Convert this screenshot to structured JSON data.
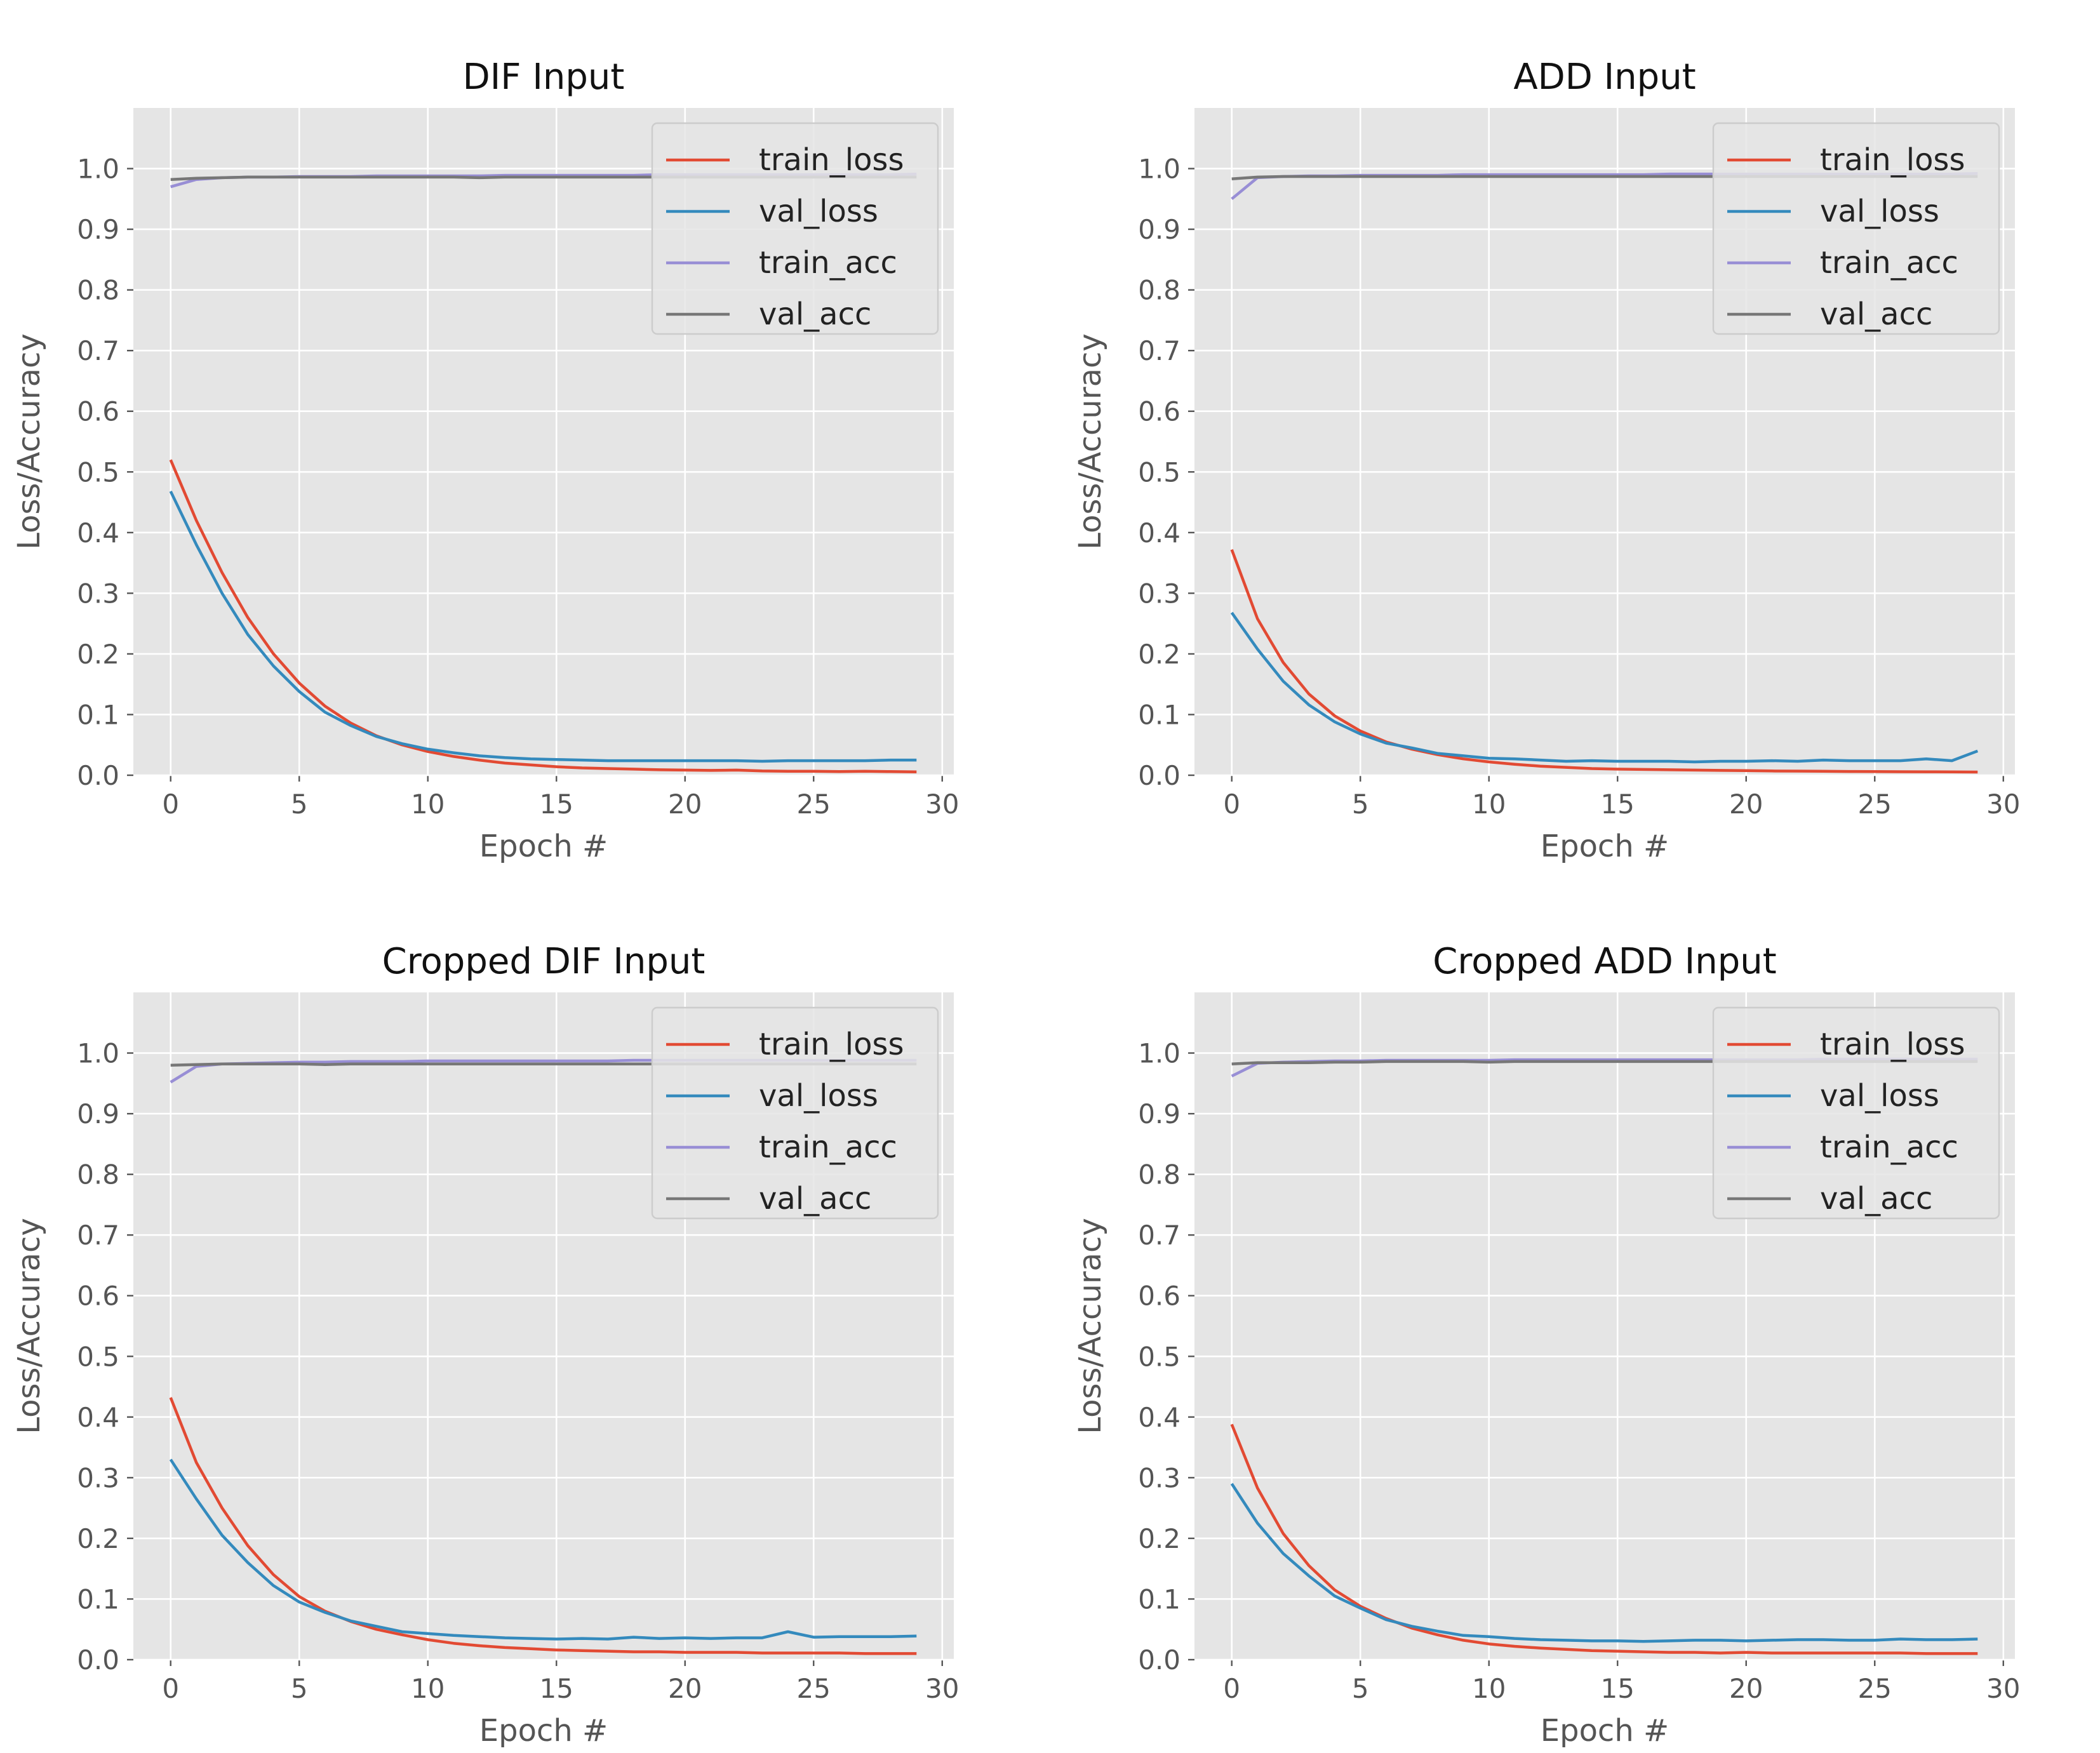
{
  "figure": {
    "xlabel": "Epoch #",
    "ylabel": "Loss/Accuracy",
    "xticks": [
      0,
      5,
      10,
      15,
      20,
      25,
      30
    ],
    "yticks": [
      0.0,
      0.1,
      0.2,
      0.3,
      0.4,
      0.5,
      0.6,
      0.7,
      0.8,
      0.9,
      1.0
    ],
    "xlim": [
      -1.45,
      30.45
    ],
    "ylim": [
      0.0,
      1.1
    ],
    "colors": {
      "train_loss": "#E24A33",
      "val_loss": "#348ABD",
      "train_acc": "#988ED5",
      "val_acc": "#777777",
      "axes_bg": "#E5E5E5",
      "grid": "#FFFFFF",
      "tick_text": "#555555"
    }
  },
  "chart_data": [
    {
      "type": "line",
      "title": "DIF Input",
      "xlabel": "Epoch #",
      "ylabel": "Loss/Accuracy",
      "xlim": [
        -1.45,
        30.45
      ],
      "ylim": [
        0.0,
        1.1
      ],
      "legend": "top-right",
      "grid": true,
      "x": [
        0,
        1,
        2,
        3,
        4,
        5,
        6,
        7,
        8,
        9,
        10,
        11,
        12,
        13,
        14,
        15,
        16,
        17,
        18,
        19,
        20,
        21,
        22,
        23,
        24,
        25,
        26,
        27,
        28,
        29
      ],
      "series": [
        {
          "name": "train_loss",
          "values": [
            0.52,
            0.42,
            0.334,
            0.26,
            0.2,
            0.152,
            0.114,
            0.086,
            0.065,
            0.05,
            0.039,
            0.031,
            0.025,
            0.02,
            0.017,
            0.014,
            0.012,
            0.011,
            0.01,
            0.009,
            0.0085,
            0.008,
            0.0085,
            0.007,
            0.0065,
            0.0065,
            0.006,
            0.0065,
            0.006,
            0.0055
          ]
        },
        {
          "name": "val_loss",
          "values": [
            0.468,
            0.38,
            0.3,
            0.232,
            0.18,
            0.138,
            0.104,
            0.082,
            0.064,
            0.052,
            0.043,
            0.037,
            0.032,
            0.029,
            0.027,
            0.026,
            0.025,
            0.024,
            0.024,
            0.024,
            0.024,
            0.024,
            0.024,
            0.023,
            0.024,
            0.024,
            0.024,
            0.024,
            0.025,
            0.025
          ]
        },
        {
          "name": "train_acc",
          "values": [
            0.97,
            0.982,
            0.985,
            0.986,
            0.986,
            0.987,
            0.987,
            0.987,
            0.988,
            0.988,
            0.988,
            0.988,
            0.988,
            0.989,
            0.989,
            0.989,
            0.989,
            0.989,
            0.989,
            0.99,
            0.99,
            0.99,
            0.99,
            0.99,
            0.99,
            0.99,
            0.99,
            0.99,
            0.99,
            0.991
          ]
        },
        {
          "name": "val_acc",
          "values": [
            0.982,
            0.984,
            0.985,
            0.986,
            0.986,
            0.986,
            0.986,
            0.986,
            0.986,
            0.986,
            0.986,
            0.986,
            0.985,
            0.986,
            0.986,
            0.986,
            0.986,
            0.986,
            0.986,
            0.986,
            0.986,
            0.986,
            0.986,
            0.986,
            0.986,
            0.986,
            0.986,
            0.986,
            0.986,
            0.986
          ]
        }
      ]
    },
    {
      "type": "line",
      "title": "ADD Input",
      "xlabel": "Epoch #",
      "ylabel": "Loss/Accuracy",
      "xlim": [
        -1.45,
        30.45
      ],
      "ylim": [
        0.0,
        1.1
      ],
      "legend": "top-right",
      "grid": true,
      "x": [
        0,
        1,
        2,
        3,
        4,
        5,
        6,
        7,
        8,
        9,
        10,
        11,
        12,
        13,
        14,
        15,
        16,
        17,
        18,
        19,
        20,
        21,
        22,
        23,
        24,
        25,
        26,
        27,
        28,
        29
      ],
      "series": [
        {
          "name": "train_loss",
          "values": [
            0.372,
            0.258,
            0.186,
            0.134,
            0.098,
            0.073,
            0.055,
            0.043,
            0.034,
            0.027,
            0.022,
            0.018,
            0.015,
            0.013,
            0.011,
            0.01,
            0.0095,
            0.009,
            0.0085,
            0.008,
            0.0075,
            0.007,
            0.0068,
            0.0065,
            0.0062,
            0.006,
            0.0058,
            0.0056,
            0.0054,
            0.0052
          ]
        },
        {
          "name": "val_loss",
          "values": [
            0.268,
            0.208,
            0.155,
            0.116,
            0.088,
            0.068,
            0.053,
            0.045,
            0.036,
            0.032,
            0.028,
            0.027,
            0.025,
            0.023,
            0.024,
            0.023,
            0.023,
            0.023,
            0.022,
            0.023,
            0.023,
            0.024,
            0.023,
            0.025,
            0.024,
            0.024,
            0.024,
            0.027,
            0.024,
            0.04
          ]
        },
        {
          "name": "train_acc",
          "values": [
            0.95,
            0.985,
            0.987,
            0.988,
            0.988,
            0.989,
            0.989,
            0.989,
            0.989,
            0.99,
            0.99,
            0.99,
            0.99,
            0.99,
            0.99,
            0.99,
            0.99,
            0.991,
            0.991,
            0.991,
            0.991,
            0.991,
            0.991,
            0.991,
            0.991,
            0.991,
            0.991,
            0.991,
            0.991,
            0.992
          ]
        },
        {
          "name": "val_acc",
          "values": [
            0.983,
            0.986,
            0.987,
            0.987,
            0.987,
            0.987,
            0.987,
            0.987,
            0.987,
            0.987,
            0.987,
            0.987,
            0.987,
            0.987,
            0.987,
            0.987,
            0.987,
            0.987,
            0.987,
            0.987,
            0.987,
            0.987,
            0.987,
            0.987,
            0.987,
            0.987,
            0.987,
            0.987,
            0.987,
            0.987
          ]
        }
      ]
    },
    {
      "type": "line",
      "title": "Cropped DIF Input",
      "xlabel": "Epoch #",
      "ylabel": "Loss/Accuracy",
      "xlim": [
        -1.45,
        30.45
      ],
      "ylim": [
        0.0,
        1.1
      ],
      "legend": "top-right",
      "grid": true,
      "x": [
        0,
        1,
        2,
        3,
        4,
        5,
        6,
        7,
        8,
        9,
        10,
        11,
        12,
        13,
        14,
        15,
        16,
        17,
        18,
        19,
        20,
        21,
        22,
        23,
        24,
        25,
        26,
        27,
        28,
        29
      ],
      "series": [
        {
          "name": "train_loss",
          "values": [
            0.432,
            0.325,
            0.25,
            0.188,
            0.14,
            0.104,
            0.08,
            0.063,
            0.05,
            0.041,
            0.033,
            0.027,
            0.023,
            0.02,
            0.018,
            0.016,
            0.015,
            0.014,
            0.013,
            0.013,
            0.012,
            0.012,
            0.012,
            0.011,
            0.011,
            0.011,
            0.011,
            0.01,
            0.01,
            0.01
          ]
        },
        {
          "name": "val_loss",
          "values": [
            0.33,
            0.265,
            0.205,
            0.16,
            0.122,
            0.095,
            0.078,
            0.064,
            0.055,
            0.046,
            0.043,
            0.04,
            0.038,
            0.036,
            0.035,
            0.034,
            0.035,
            0.034,
            0.037,
            0.035,
            0.036,
            0.035,
            0.036,
            0.036,
            0.046,
            0.037,
            0.038,
            0.038,
            0.038,
            0.039
          ]
        },
        {
          "name": "train_acc",
          "values": [
            0.952,
            0.978,
            0.982,
            0.983,
            0.984,
            0.985,
            0.985,
            0.986,
            0.986,
            0.986,
            0.987,
            0.987,
            0.987,
            0.987,
            0.987,
            0.987,
            0.987,
            0.987,
            0.988,
            0.988,
            0.988,
            0.988,
            0.988,
            0.988,
            0.988,
            0.988,
            0.988,
            0.988,
            0.988,
            0.988
          ]
        },
        {
          "name": "val_acc",
          "values": [
            0.98,
            0.981,
            0.982,
            0.982,
            0.982,
            0.982,
            0.981,
            0.982,
            0.982,
            0.982,
            0.982,
            0.982,
            0.982,
            0.982,
            0.982,
            0.982,
            0.982,
            0.982,
            0.982,
            0.982,
            0.982,
            0.982,
            0.982,
            0.982,
            0.982,
            0.982,
            0.982,
            0.982,
            0.982,
            0.982
          ]
        }
      ]
    },
    {
      "type": "line",
      "title": "Cropped ADD Input",
      "xlabel": "Epoch #",
      "ylabel": "Loss/Accuracy",
      "xlim": [
        -1.45,
        30.45
      ],
      "ylim": [
        0.0,
        1.1
      ],
      "legend": "top-right",
      "grid": true,
      "x": [
        0,
        1,
        2,
        3,
        4,
        5,
        6,
        7,
        8,
        9,
        10,
        11,
        12,
        13,
        14,
        15,
        16,
        17,
        18,
        19,
        20,
        21,
        22,
        23,
        24,
        25,
        26,
        27,
        28,
        29
      ],
      "series": [
        {
          "name": "train_loss",
          "values": [
            0.388,
            0.283,
            0.208,
            0.155,
            0.115,
            0.088,
            0.068,
            0.052,
            0.041,
            0.032,
            0.026,
            0.022,
            0.019,
            0.017,
            0.015,
            0.014,
            0.013,
            0.012,
            0.012,
            0.011,
            0.012,
            0.011,
            0.011,
            0.011,
            0.011,
            0.011,
            0.011,
            0.01,
            0.01,
            0.01
          ]
        },
        {
          "name": "val_loss",
          "values": [
            0.29,
            0.225,
            0.175,
            0.138,
            0.105,
            0.085,
            0.066,
            0.055,
            0.047,
            0.04,
            0.038,
            0.035,
            0.033,
            0.032,
            0.031,
            0.031,
            0.03,
            0.031,
            0.032,
            0.032,
            0.031,
            0.032,
            0.033,
            0.033,
            0.032,
            0.032,
            0.034,
            0.033,
            0.033,
            0.034
          ]
        },
        {
          "name": "train_acc",
          "values": [
            0.962,
            0.983,
            0.985,
            0.986,
            0.987,
            0.987,
            0.988,
            0.988,
            0.988,
            0.988,
            0.988,
            0.989,
            0.989,
            0.989,
            0.989,
            0.989,
            0.989,
            0.989,
            0.989,
            0.989,
            0.989,
            0.989,
            0.989,
            0.99,
            0.99,
            0.99,
            0.99,
            0.99,
            0.99,
            0.99
          ]
        },
        {
          "name": "val_acc",
          "values": [
            0.982,
            0.984,
            0.984,
            0.984,
            0.985,
            0.985,
            0.986,
            0.986,
            0.986,
            0.986,
            0.985,
            0.986,
            0.986,
            0.986,
            0.986,
            0.986,
            0.986,
            0.986,
            0.986,
            0.986,
            0.986,
            0.986,
            0.986,
            0.986,
            0.986,
            0.986,
            0.986,
            0.986,
            0.986,
            0.986
          ]
        }
      ]
    }
  ]
}
